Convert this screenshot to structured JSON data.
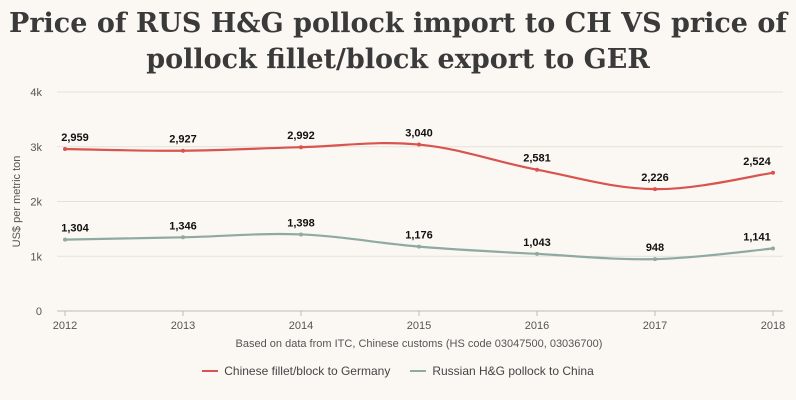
{
  "chart_data": {
    "type": "line",
    "title": "Price of RUS H&G pollock import to CH VS price of pollock fillet/block export to GER",
    "title_lines": [
      "Price of RUS H&G pollock import to CH VS price of",
      "pollock fillet/block export to GER"
    ],
    "ylabel": "US$ per metric ton",
    "xlabel": "Based on data from ITC, Chinese customs (HS code 03047500, 03036700)",
    "x": [
      "2012",
      "2013",
      "2014",
      "2015",
      "2016",
      "2017",
      "2018"
    ],
    "ylim": [
      0,
      4000
    ],
    "yticks": [
      {
        "v": 0,
        "label": "0"
      },
      {
        "v": 1000,
        "label": "1k"
      },
      {
        "v": 2000,
        "label": "2k"
      },
      {
        "v": 3000,
        "label": "3k"
      },
      {
        "v": 4000,
        "label": "4k"
      }
    ],
    "grid": true,
    "legend_position": "bottom-center",
    "series": [
      {
        "name": "Chinese fillet/block to Germany",
        "color": "#d9534f",
        "values": [
          2959,
          2927,
          2992,
          3040,
          2581,
          2226,
          2524
        ],
        "labels": [
          "2,959",
          "2,927",
          "2,992",
          "3,040",
          "2,581",
          "2,226",
          "2,524"
        ]
      },
      {
        "name": "Russian H&G pollock to China",
        "color": "#8fa9a3",
        "values": [
          1304,
          1346,
          1398,
          1176,
          1043,
          948,
          1141
        ],
        "labels": [
          "1,304",
          "1,346",
          "1,398",
          "1,176",
          "1,043",
          "948",
          "1,141"
        ]
      }
    ]
  }
}
